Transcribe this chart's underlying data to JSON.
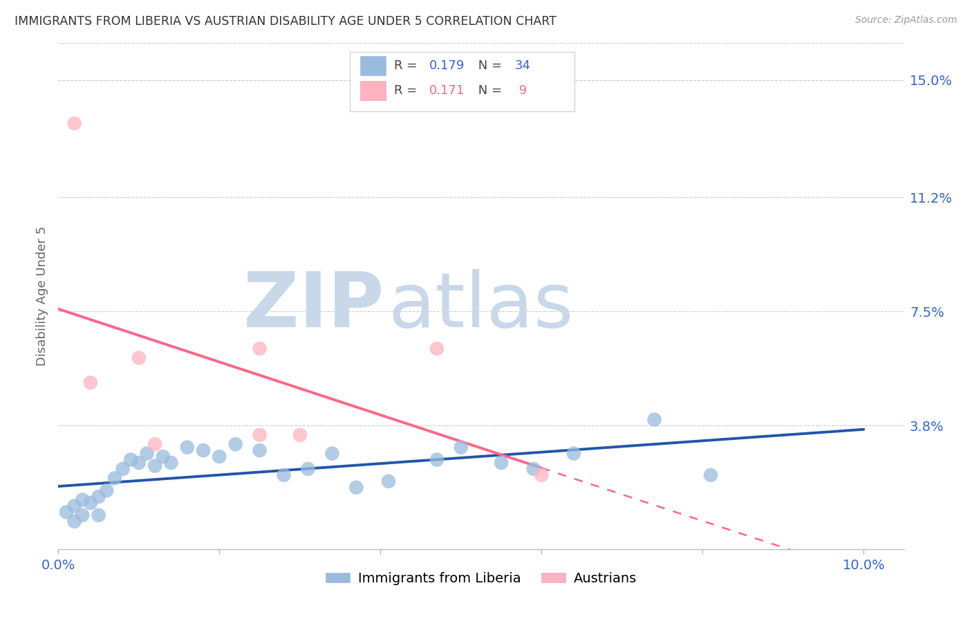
{
  "title": "IMMIGRANTS FROM LIBERIA VS AUSTRIAN DISABILITY AGE UNDER 5 CORRELATION CHART",
  "source": "Source: ZipAtlas.com",
  "ylabel": "Disability Age Under 5",
  "xlim": [
    0.0,
    0.105
  ],
  "ylim": [
    -0.002,
    0.162
  ],
  "ytick_vals": [
    0.038,
    0.075,
    0.112,
    0.15
  ],
  "ytick_labels": [
    "3.8%",
    "7.5%",
    "11.2%",
    "15.0%"
  ],
  "xtick_vals": [
    0.0,
    0.02,
    0.04,
    0.06,
    0.08,
    0.1
  ],
  "xtick_labels": [
    "0.0%",
    "",
    "",
    "",
    "",
    "10.0%"
  ],
  "blue_color": "#99BBDD",
  "pink_color": "#FFB3C1",
  "blue_line_color": "#2255AA",
  "pink_line_color": "#FF6688",
  "blue_scatter_x": [
    0.001,
    0.002,
    0.002,
    0.003,
    0.003,
    0.004,
    0.005,
    0.005,
    0.006,
    0.007,
    0.008,
    0.009,
    0.01,
    0.011,
    0.012,
    0.013,
    0.014,
    0.016,
    0.018,
    0.02,
    0.022,
    0.025,
    0.028,
    0.031,
    0.034,
    0.037,
    0.041,
    0.047,
    0.05,
    0.055,
    0.059,
    0.064,
    0.074,
    0.081
  ],
  "blue_scatter_y": [
    0.01,
    0.012,
    0.007,
    0.014,
    0.009,
    0.013,
    0.015,
    0.009,
    0.017,
    0.021,
    0.024,
    0.027,
    0.026,
    0.029,
    0.025,
    0.028,
    0.026,
    0.031,
    0.03,
    0.028,
    0.032,
    0.03,
    0.022,
    0.024,
    0.029,
    0.018,
    0.02,
    0.027,
    0.031,
    0.026,
    0.024,
    0.029,
    0.04,
    0.022
  ],
  "pink_scatter_x": [
    0.002,
    0.004,
    0.01,
    0.012,
    0.025,
    0.03,
    0.047,
    0.06,
    0.025
  ],
  "pink_scatter_y": [
    0.136,
    0.052,
    0.06,
    0.032,
    0.035,
    0.035,
    0.063,
    0.022,
    0.063
  ],
  "r_blue": "0.179",
  "n_blue": "34",
  "r_pink": "0.171",
  "n_pink": " 9",
  "watermark_zip": "ZIP",
  "watermark_atlas": "atlas",
  "watermark_color_zip": "#C8D8E8",
  "watermark_color_atlas": "#C8D8E8",
  "bg_color": "#FFFFFF",
  "grid_color": "#CCCCCC"
}
